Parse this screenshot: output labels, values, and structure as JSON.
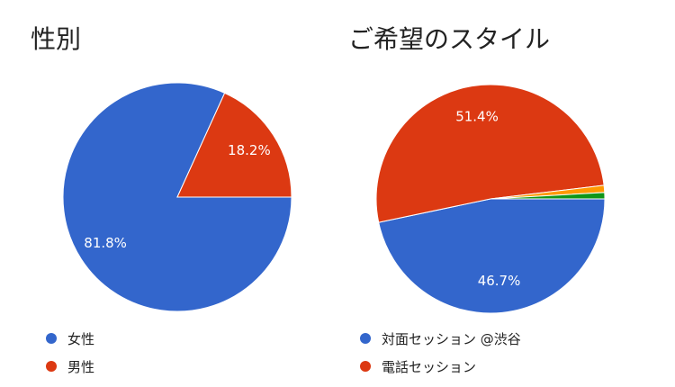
{
  "chart_data": [
    {
      "type": "pie",
      "title": "性別",
      "categories": [
        "女性",
        "男性"
      ],
      "values": [
        81.8,
        18.2
      ],
      "labels": [
        "81.8%",
        "18.2%"
      ],
      "colors": [
        "#3366cc",
        "#dc3912"
      ],
      "legend": [
        {
          "label": "女性",
          "color": "#3366cc"
        },
        {
          "label": "男性",
          "color": "#dc3912"
        }
      ],
      "legend_position": "bottom-left"
    },
    {
      "type": "pie",
      "title": "ご希望のスタイル",
      "categories": [
        "対面セッション @渋谷",
        "電話セッション",
        "",
        ""
      ],
      "values": [
        46.7,
        51.4,
        1.0,
        0.9
      ],
      "labels": [
        "46.7%",
        "51.4%",
        "",
        ""
      ],
      "colors": [
        "#3366cc",
        "#dc3912",
        "#ff9900",
        "#109618"
      ],
      "legend": [
        {
          "label": "対面セッション @渋谷",
          "color": "#3366cc"
        },
        {
          "label": "電話セッション",
          "color": "#dc3912"
        }
      ],
      "legend_position": "bottom-left"
    }
  ]
}
